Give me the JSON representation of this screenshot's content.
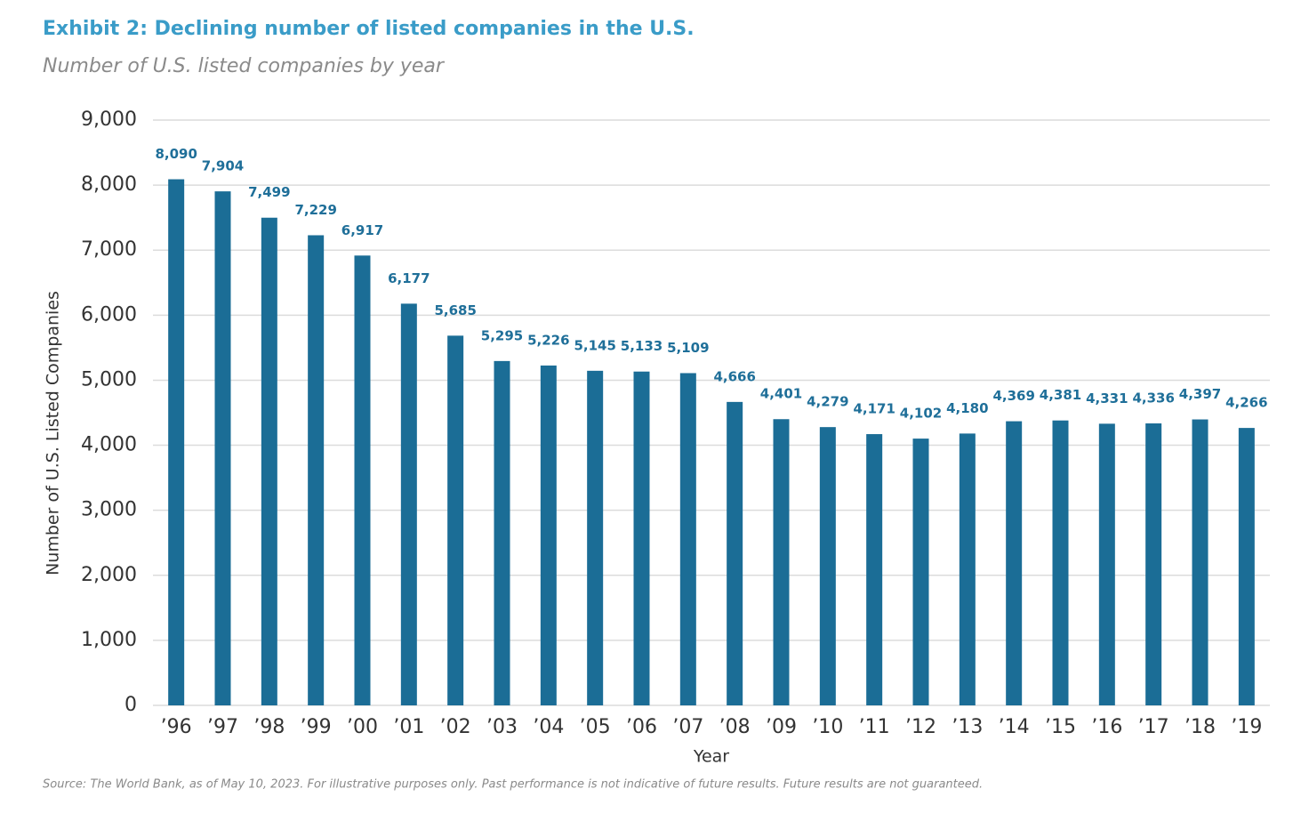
{
  "chart_data": {
    "type": "bar",
    "title": "Exhibit 2: Declining number of listed companies in the U.S.",
    "subtitle": "Number of U.S. listed companies by year",
    "y_label": "Number of U.S. Listed Companies",
    "x_label": "Year",
    "source": "Source: The World Bank, as of May 10, 2023. For illustrative purposes only. Past performance is not indicative of future results. Future results are not guaranteed.",
    "categories": [
      "’96",
      "’97",
      "’98",
      "’99",
      "’00",
      "’01",
      "’02",
      "’03",
      "’04",
      "’05",
      "’06",
      "’07",
      "’08",
      "’09",
      "’10",
      "’11",
      "’12",
      "’13",
      "’14",
      "’15",
      "’16",
      "’17",
      "’18",
      "’19"
    ],
    "values": [
      8090,
      7904,
      7499,
      7229,
      6917,
      6177,
      5685,
      5295,
      5226,
      5145,
      5133,
      5109,
      4666,
      4401,
      4279,
      4171,
      4102,
      4180,
      4369,
      4381,
      4331,
      4336,
      4397,
      4266
    ],
    "value_labels": [
      "8,090",
      "7,904",
      "7,499",
      "7,229",
      "6,917",
      "6,177",
      "5,685",
      "5,295",
      "5,226",
      "5,145",
      "5,133",
      "5,109",
      "4,666",
      "4,401",
      "4,279",
      "4,171",
      "4,102",
      "4,180",
      "4,369",
      "4,381",
      "4,331",
      "4,336",
      "4,397",
      "4,266"
    ],
    "color": "#1b6d96",
    "label_color": "#1f6f99",
    "ylim": [
      0,
      9000
    ],
    "yticks": [
      0,
      {
        "value": 1000,
        "label": "1,000"
      },
      {
        "value": 2000,
        "label": "2,000"
      },
      {
        "value": 3000,
        "label": "3,000"
      },
      {
        "value": 4000,
        "label": "4,000"
      },
      {
        "value": 5000,
        "label": "5,000"
      },
      {
        "value": 6000,
        "label": "6,000"
      },
      {
        "value": 7000,
        "label": "7,000"
      },
      {
        "value": 8000,
        "label": "8,000"
      },
      {
        "value": 9000,
        "label": "9,000"
      }
    ],
    "grid": true
  }
}
